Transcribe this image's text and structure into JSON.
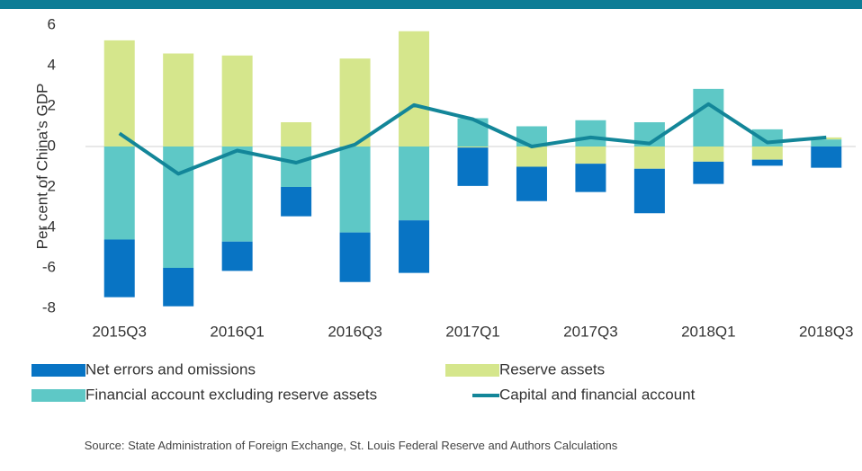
{
  "chart_data": {
    "type": "bar",
    "y_label": "Per cent of China's GDP",
    "categories": [
      "2015Q3",
      null,
      "2016Q1",
      null,
      "2016Q3",
      null,
      "2017Q1",
      null,
      "2017Q3",
      null,
      "2018Q1",
      null,
      "2018Q3"
    ],
    "series": [
      {
        "name": "Financial account excluding reserve assets",
        "color": "#5ec8c6",
        "values": [
          -4.6,
          -6.0,
          -4.7,
          -2.0,
          -4.25,
          -3.65,
          1.4,
          1.0,
          1.3,
          1.2,
          2.85,
          0.85,
          0.35
        ]
      },
      {
        "name": "Reserve assets",
        "color": "#d5e68c",
        "values": [
          5.25,
          4.6,
          4.5,
          1.2,
          4.35,
          5.7,
          -0.05,
          -1.0,
          -0.85,
          -1.1,
          -0.75,
          -0.65,
          0.1
        ]
      },
      {
        "name": "Net errors and omissions",
        "color": "#0874c4",
        "values": [
          -2.85,
          -1.9,
          -1.45,
          -1.45,
          -2.45,
          -2.6,
          -1.9,
          -1.7,
          -1.4,
          -2.2,
          -1.1,
          -0.3,
          -1.05
        ]
      },
      {
        "name": "Capital and financial account",
        "color": "#138699",
        "type": "line",
        "values": [
          0.65,
          -1.35,
          -0.2,
          -0.8,
          0.1,
          2.05,
          1.35,
          0.0,
          0.45,
          0.15,
          2.1,
          0.2,
          0.45
        ]
      }
    ],
    "ylim": [
      -8,
      6
    ],
    "yticks": [
      -8,
      -6,
      -4,
      -2,
      0,
      2,
      4,
      6
    ],
    "grid": false,
    "source": "Source: State Administration of Foreign Exchange, St. Louis Federal Reserve and Authors Calculations"
  }
}
